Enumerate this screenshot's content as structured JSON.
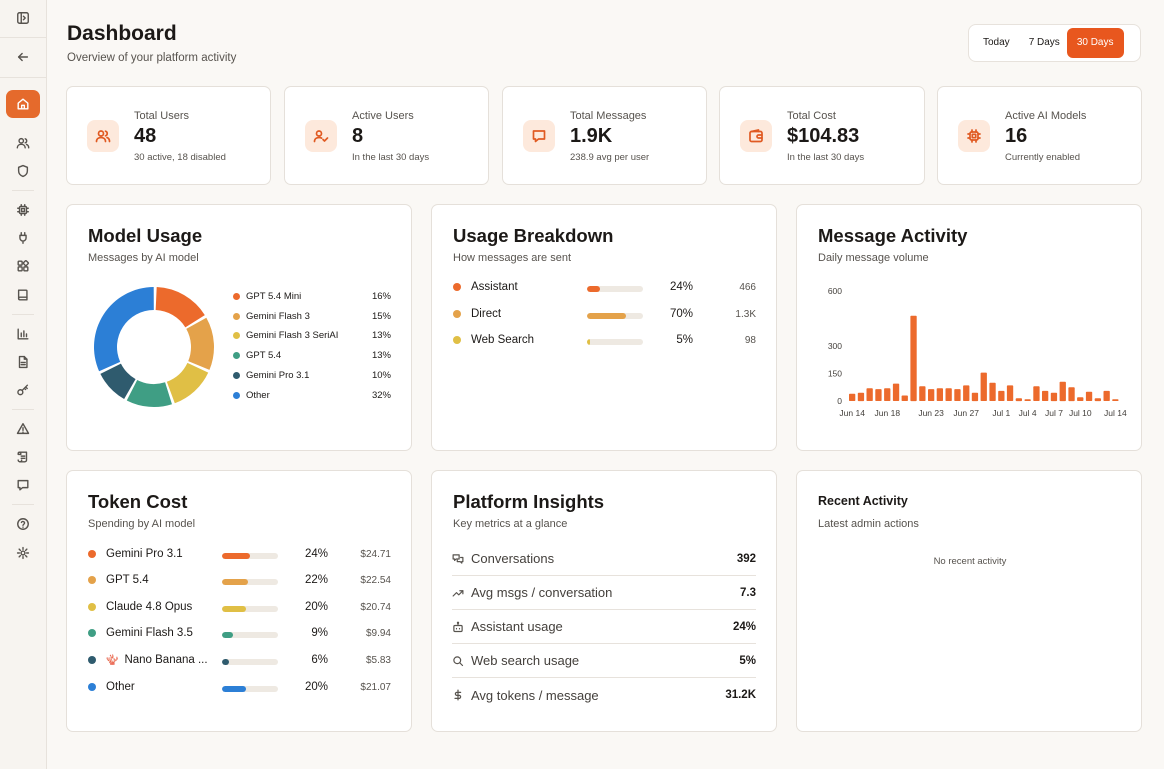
{
  "header": {
    "title": "Dashboard",
    "subtitle": "Overview of your platform activity"
  },
  "range": {
    "options": [
      "Today",
      "7 Days",
      "30 Days"
    ],
    "selected": "30 Days"
  },
  "stats": [
    {
      "label": "Total Users",
      "value": "48",
      "note": "30 active, 18 disabled",
      "icon": "users-icon"
    },
    {
      "label": "Active Users",
      "value": "8",
      "note": "In the last 30 days",
      "icon": "user-check-icon"
    },
    {
      "label": "Total Messages",
      "value": "1.9K",
      "note": "238.9 avg per user",
      "icon": "message-icon"
    },
    {
      "label": "Total Cost",
      "value": "$104.83",
      "note": "In the last 30 days",
      "icon": "wallet-icon"
    },
    {
      "label": "Active AI Models",
      "value": "16",
      "note": "Currently enabled",
      "icon": "cpu-icon"
    }
  ],
  "model_usage": {
    "title": "Model Usage",
    "subtitle": "Messages by AI model",
    "items": [
      {
        "name": "GPT 5.4 Mini",
        "pct": "16%",
        "color": "#ec6a2c"
      },
      {
        "name": "Gemini Flash 3",
        "pct": "15%",
        "color": "#e4a24a"
      },
      {
        "name": "Gemini Flash 3 SeriAI",
        "pct": "13%",
        "color": "#e0bf45"
      },
      {
        "name": "GPT 5.4",
        "pct": "13%",
        "color": "#3f9e84"
      },
      {
        "name": "Gemini Pro 3.1",
        "pct": "10%",
        "color": "#2f5b6e"
      },
      {
        "name": "Other",
        "pct": "32%",
        "color": "#2c7fd6"
      }
    ]
  },
  "usage_breakdown": {
    "title": "Usage Breakdown",
    "subtitle": "How messages are sent",
    "items": [
      {
        "name": "Assistant",
        "pct": "24%",
        "count": "466",
        "color": "#ec6a2c",
        "value": 24
      },
      {
        "name": "Direct",
        "pct": "70%",
        "count": "1.3K",
        "color": "#e4a24a",
        "value": 70
      },
      {
        "name": "Web Search",
        "pct": "5%",
        "count": "98",
        "color": "#e0bf45",
        "value": 5
      }
    ]
  },
  "message_activity": {
    "title": "Message Activity",
    "subtitle": "Daily message volume"
  },
  "chart_data": {
    "type": "bar",
    "yticks": [
      "600",
      "300",
      "150",
      "0"
    ],
    "ylim": [
      0,
      600
    ],
    "xticks": [
      "Jun 14",
      "Jun 18",
      "Jun 23",
      "Jun 27",
      "Jul 1",
      "Jul 4",
      "Jul 7",
      "Jul 10",
      "Jul 14"
    ],
    "categories": [
      "Jun 14",
      "Jun 15",
      "Jun 16",
      "Jun 17",
      "Jun 18",
      "Jun 19",
      "Jun 20",
      "Jun 21",
      "Jun 22",
      "Jun 23",
      "Jun 24",
      "Jun 25",
      "Jun 26",
      "Jun 27",
      "Jun 28",
      "Jun 29",
      "Jun 30",
      "Jul 1",
      "Jul 2",
      "Jul 3",
      "Jul 4",
      "Jul 5",
      "Jul 6",
      "Jul 7",
      "Jul 8",
      "Jul 9",
      "Jul 10",
      "Jul 11",
      "Jul 12",
      "Jul 13",
      "Jul 14"
    ],
    "values": [
      40,
      45,
      70,
      65,
      70,
      95,
      30,
      465,
      80,
      65,
      70,
      70,
      65,
      85,
      45,
      155,
      100,
      55,
      85,
      15,
      10,
      80,
      55,
      45,
      105,
      75,
      20,
      50,
      15,
      55,
      10
    ],
    "color": "#ec6a2c"
  },
  "token_cost": {
    "title": "Token Cost",
    "subtitle": "Spending by AI model",
    "items": [
      {
        "name": "Gemini Pro 3.1",
        "pct": "24%",
        "amount": "$24.71",
        "color": "#ec6a2c",
        "value": 24
      },
      {
        "name": "GPT 5.4",
        "pct": "22%",
        "amount": "$22.54",
        "color": "#e4a24a",
        "value": 22
      },
      {
        "name": "Claude 4.8 Opus",
        "pct": "20%",
        "amount": "$20.74",
        "color": "#e0bf45",
        "value": 20
      },
      {
        "name": "Gemini Flash 3.5",
        "pct": "9%",
        "amount": "$9.94",
        "color": "#3f9e84",
        "value": 9
      },
      {
        "name": "Nano Banana ...",
        "pct": "6%",
        "amount": "$5.83",
        "color": "#2f5b6e",
        "value": 6,
        "emoji": "🪸"
      },
      {
        "name": "Other",
        "pct": "20%",
        "amount": "$21.07",
        "color": "#2c7fd6",
        "value": 20
      }
    ]
  },
  "insights": {
    "title": "Platform Insights",
    "subtitle": "Key metrics at a glance",
    "items": [
      {
        "label": "Conversations",
        "value": "392",
        "icon": "chat-bubbles-icon"
      },
      {
        "label": "Avg msgs / conversation",
        "value": "7.3",
        "icon": "trend-up-icon"
      },
      {
        "label": "Assistant usage",
        "value": "24%",
        "icon": "bot-icon"
      },
      {
        "label": "Web search usage",
        "value": "5%",
        "icon": "search-icon"
      },
      {
        "label": "Avg tokens / message",
        "value": "31.2K",
        "icon": "dollar-icon"
      }
    ]
  },
  "recent": {
    "title": "Recent Activity",
    "subtitle": "Latest admin actions",
    "empty": "No recent activity"
  }
}
